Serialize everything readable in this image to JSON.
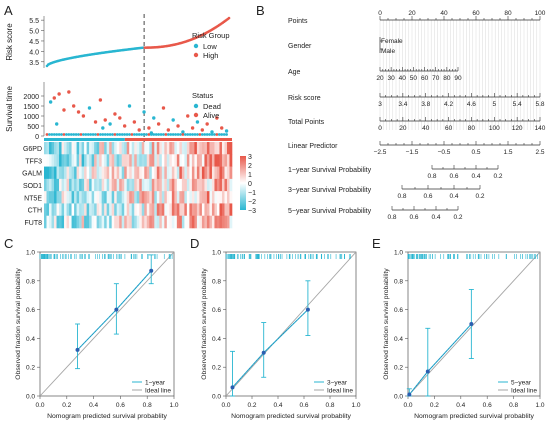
{
  "panel_labels": [
    "A",
    "B",
    "C",
    "D",
    "E"
  ],
  "chart_data": [
    {
      "id": "A-risk",
      "type": "scatter",
      "ylabel": "Risk score",
      "yticks": [
        3.5,
        4.0,
        4.5,
        5.0,
        5.5
      ],
      "ylim": [
        3.2,
        5.7
      ],
      "n": 150,
      "cutoff_index": 80,
      "range_low": [
        3.3,
        4.18
      ],
      "range_high": [
        4.18,
        5.6
      ],
      "legend_title": "Risk Group",
      "legend_entries": [
        "Low",
        "High"
      ],
      "colors": {
        "low": "#29b6d1",
        "high": "#e8584a"
      }
    },
    {
      "id": "A-survival",
      "type": "scatter",
      "ylabel": "Survival time",
      "yticks": [
        0,
        500,
        1000,
        1500,
        2000
      ],
      "ylim": [
        0,
        2700
      ],
      "legend_title": "Status",
      "legend_entries": [
        "Dead",
        "Alive"
      ],
      "colors": {
        "dead": "#29b6d1",
        "alive": "#e8584a"
      },
      "points": [
        [
          3,
          1700,
          "dead"
        ],
        [
          6,
          1900,
          "alive"
        ],
        [
          10,
          2100,
          "alive"
        ],
        [
          14,
          1300,
          "alive"
        ],
        [
          18,
          2200,
          "alive"
        ],
        [
          22,
          1500,
          "alive"
        ],
        [
          26,
          1200,
          "alive"
        ],
        [
          30,
          1000,
          "alive"
        ],
        [
          35,
          1400,
          "dead"
        ],
        [
          40,
          700,
          "alive"
        ],
        [
          44,
          1800,
          "alive"
        ],
        [
          48,
          800,
          "alive"
        ],
        [
          52,
          600,
          "dead"
        ],
        [
          56,
          1100,
          "alive"
        ],
        [
          60,
          900,
          "alive"
        ],
        [
          64,
          500,
          "alive"
        ],
        [
          68,
          1500,
          "dead"
        ],
        [
          72,
          700,
          "alive"
        ],
        [
          76,
          300,
          "alive"
        ],
        [
          80,
          1200,
          "dead"
        ],
        [
          84,
          400,
          "alive"
        ],
        [
          88,
          900,
          "dead"
        ],
        [
          92,
          600,
          "alive"
        ],
        [
          96,
          1400,
          "alive"
        ],
        [
          100,
          300,
          "alive"
        ],
        [
          104,
          800,
          "dead"
        ],
        [
          108,
          500,
          "alive"
        ],
        [
          112,
          200,
          "dead"
        ],
        [
          116,
          1000,
          "alive"
        ],
        [
          120,
          400,
          "alive"
        ],
        [
          124,
          700,
          "dead"
        ],
        [
          128,
          300,
          "alive"
        ],
        [
          132,
          600,
          "alive"
        ],
        [
          136,
          200,
          "dead"
        ],
        [
          140,
          900,
          "alive"
        ],
        [
          144,
          400,
          "alive"
        ],
        [
          148,
          250,
          "dead"
        ],
        [
          8,
          600,
          "dead"
        ],
        [
          46,
          400,
          "dead"
        ],
        [
          86,
          150,
          "dead"
        ]
      ]
    },
    {
      "id": "A-heatmap",
      "type": "heatmap",
      "genes": [
        "G6PD",
        "TFF3",
        "GALM",
        "SOD1",
        "NT5E",
        "CTH",
        "FUT8"
      ],
      "colorbar_ticks": [
        3,
        2,
        1,
        0,
        -1,
        -2,
        -3
      ],
      "colors": {
        "low": "#29b6d1",
        "mid": "#ffffff",
        "high": "#e8584a"
      }
    },
    {
      "id": "B-nomogram",
      "type": "table",
      "rows": [
        {
          "label": "Points",
          "ticks": [
            "0",
            "20",
            "40",
            "60",
            "80",
            "100"
          ]
        },
        {
          "label": "Gender",
          "ticks": [
            "Female",
            "Male"
          ]
        },
        {
          "label": "Age",
          "ticks": [
            "20",
            "30",
            "40",
            "50",
            "60",
            "70",
            "80",
            "90"
          ]
        },
        {
          "label": "Risk score",
          "ticks": [
            "3",
            "3.4",
            "3.8",
            "4.2",
            "4.6",
            "5",
            "5.4",
            "5.8"
          ]
        },
        {
          "label": "Total Points",
          "ticks": [
            "0",
            "20",
            "40",
            "60",
            "80",
            "100",
            "120",
            "140"
          ]
        },
        {
          "label": "Linear Predictor",
          "ticks": [
            "−2.5",
            "−1.5",
            "−0.5",
            "0.5",
            "1.5",
            "2.5"
          ]
        },
        {
          "label": "1−year Survival Probability",
          "ticks": [
            "0.8",
            "0.6",
            "0.4",
            "0.2"
          ]
        },
        {
          "label": "3−year Survival Probability",
          "ticks": [
            "0.8",
            "0.6",
            "0.4",
            "0.2"
          ]
        },
        {
          "label": "5−year Survival Probability",
          "ticks": [
            "0.8",
            "0.6",
            "0.4",
            "0.2"
          ]
        }
      ]
    },
    {
      "id": "C-calibration",
      "type": "line",
      "xlabel": "Nomogram predicted survival probablity",
      "ylabel": "Observed fraction survival probability",
      "xlim": [
        0,
        1
      ],
      "ylim": [
        0,
        1
      ],
      "xticks": [
        0.0,
        0.2,
        0.4,
        0.6,
        0.8,
        1.0
      ],
      "yticks": [
        0.0,
        0.2,
        0.4,
        0.6,
        0.8,
        1.0
      ],
      "points": [
        [
          0.28,
          0.32,
          0.19,
          0.5
        ],
        [
          0.57,
          0.6,
          0.43,
          0.78
        ],
        [
          0.83,
          0.87,
          0.78,
          0.98
        ]
      ],
      "legend": [
        "1−year",
        "Ideal line"
      ]
    },
    {
      "id": "D-calibration",
      "type": "line",
      "xlabel": "Nomogram predicted survival probablity",
      "ylabel": "Observed fraction survival probability",
      "xlim": [
        0,
        1
      ],
      "ylim": [
        0,
        1
      ],
      "xticks": [
        0.0,
        0.2,
        0.4,
        0.6,
        0.8,
        1.0
      ],
      "yticks": [
        0.0,
        0.2,
        0.4,
        0.6,
        0.8,
        1.0
      ],
      "points": [
        [
          0.05,
          0.06,
          0.0,
          0.31
        ],
        [
          0.29,
          0.3,
          0.13,
          0.51
        ],
        [
          0.63,
          0.6,
          0.42,
          0.8
        ]
      ],
      "legend": [
        "3−year",
        "Ideal line"
      ]
    },
    {
      "id": "E-calibration",
      "type": "line",
      "xlabel": "Nomogram predicted survival probablity",
      "ylabel": "Observed fraction survival probability",
      "xlim": [
        0,
        1
      ],
      "ylim": [
        0,
        1
      ],
      "xticks": [
        0.0,
        0.2,
        0.4,
        0.6,
        0.8,
        1.0
      ],
      "yticks": [
        0.0,
        0.2,
        0.4,
        0.6,
        0.8,
        1.0
      ],
      "points": [
        [
          0.01,
          0.01,
          0.0,
          0.05
        ],
        [
          0.15,
          0.17,
          0.0,
          0.47
        ],
        [
          0.48,
          0.5,
          0.26,
          0.74
        ]
      ],
      "legend": [
        "5−year",
        "Ideal line"
      ]
    }
  ]
}
